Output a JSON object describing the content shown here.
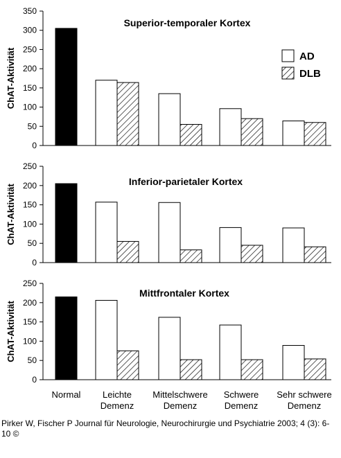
{
  "chart_data": [
    {
      "type": "bar",
      "title": "Superior-temporaler Kortex",
      "ylabel": "ChAT-Aktivität",
      "ylim": [
        0,
        350
      ],
      "yticks": [
        0,
        50,
        100,
        150,
        200,
        250,
        300,
        350
      ],
      "normal": 305,
      "series": [
        {
          "name": "AD",
          "values": [
            170,
            135,
            96,
            64
          ]
        },
        {
          "name": "DLB",
          "values": [
            164,
            55,
            70,
            60
          ]
        }
      ],
      "legend": [
        "AD",
        "DLB"
      ]
    },
    {
      "type": "bar",
      "title": "Inferior-parietaler Kortex",
      "ylabel": "ChAT-Aktivität",
      "ylim": [
        0,
        250
      ],
      "yticks": [
        0,
        50,
        100,
        150,
        200,
        250
      ],
      "normal": 205,
      "series": [
        {
          "name": "AD",
          "values": [
            157,
            156,
            91,
            90
          ]
        },
        {
          "name": "DLB",
          "values": [
            55,
            33,
            45,
            41
          ]
        }
      ]
    },
    {
      "type": "bar",
      "title": "Mittfrontaler Kortex",
      "ylabel": "ChAT-Aktivität",
      "ylim": [
        0,
        250
      ],
      "yticks": [
        0,
        50,
        100,
        150,
        200,
        250
      ],
      "normal": 215,
      "series": [
        {
          "name": "AD",
          "values": [
            206,
            162,
            142,
            89
          ]
        },
        {
          "name": "DLB",
          "values": [
            75,
            52,
            52,
            54
          ]
        }
      ]
    }
  ],
  "x_categories": [
    {
      "line1": "Normal",
      "line2": ""
    },
    {
      "line1": "Leichte",
      "line2": "Demenz"
    },
    {
      "line1": "Mittelschwere",
      "line2": "Demenz"
    },
    {
      "line1": "Schwere",
      "line2": "Demenz"
    },
    {
      "line1": "Sehr schwere",
      "line2": "Demenz"
    }
  ],
  "caption": "Pirker W, Fischer P Journal für Neurologie, Neurochirurgie und Psychiatrie 2003; 4 (3): 6-10 ©"
}
